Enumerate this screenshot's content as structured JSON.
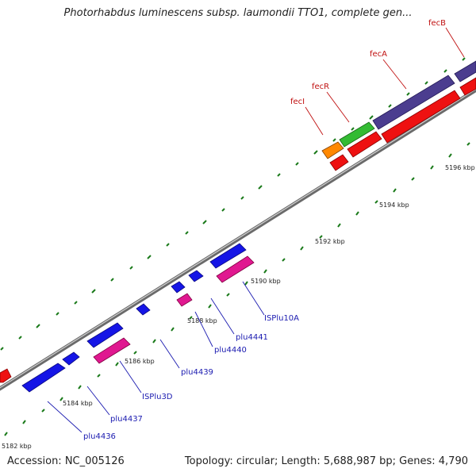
{
  "title": "Photorhabdus luminescens subsp. laumondii TTO1, complete gen...",
  "footer": {
    "accession": "Accession: NC_005126",
    "summary": "Topology: circular; Length: 5,688,987 bp; Genes: 4,790"
  },
  "scale_labels": [
    "5182 kbp",
    "5184 kbp",
    "5186 kbp",
    "5188 kbp",
    "5190 kbp",
    "5192 kbp",
    "5194 kbp",
    "5196 kbp"
  ],
  "gene_labels": {
    "blue": [
      "plu4436",
      "plu4437",
      "ISPlu3D",
      "plu4439",
      "plu4440",
      "plu4441",
      "ISPlu10A"
    ],
    "red": [
      "fecI",
      "fecR",
      "fecA",
      "fecB"
    ]
  },
  "colors": {
    "forward_blue": "#1515e6",
    "reverse_pink": "#e01890",
    "red_gene": "#ee1111",
    "purple_gene": "#4b3d8f",
    "green_gene": "#33bb33",
    "orange_gene": "#ff8800",
    "label_blue": "#1a1ab0",
    "label_red": "#c01010"
  }
}
